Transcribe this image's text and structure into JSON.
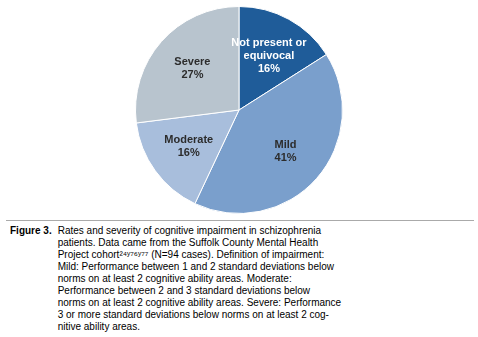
{
  "chart_data": {
    "type": "pie",
    "categories": [
      "Not present or\nequivocal",
      "Mild",
      "Moderate",
      "Severe"
    ],
    "values": [
      16,
      41,
      16,
      27
    ],
    "value_labels": [
      "16%",
      "41%",
      "16%",
      "27%"
    ],
    "data_labels": true,
    "colors": [
      "#1F5C99",
      "#7A9FCC",
      "#A8BEDC",
      "#B8C4CE"
    ],
    "legend": false,
    "annotations": [
      "Figure 3.",
      "Rates and severity of cognitive impairment in schizophrenia\npatients. Data came from the Suffolk County Mental Health\nProject cohort²⁴ʸ⁷⁶ʸ⁷⁷ (N=94 cases). Definition of impairment:\nMild: Performance between 1 and 2 standard deviations below\nnorms on at least 2 cognitive ability areas. Moderate:\nPerformance between 2 and 3 standard deviations below\nnorms on at least 2 cognitive ability areas. Severe: Performance\n3 or more standard deviations below norms on at least 2 cog-\nnitive ability areas."
    ]
  }
}
